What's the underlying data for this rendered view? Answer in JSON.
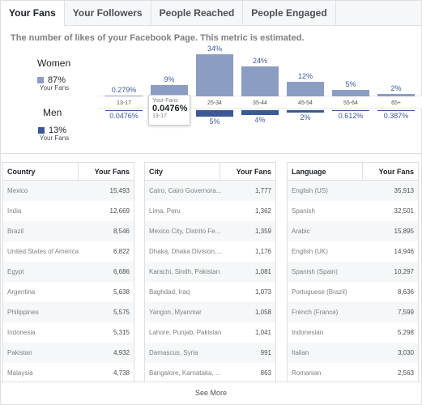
{
  "tabs": [
    {
      "label": "Your Fans",
      "active": true
    },
    {
      "label": "Your Followers",
      "active": false
    },
    {
      "label": "People Reached",
      "active": false
    },
    {
      "label": "People Engaged",
      "active": false
    }
  ],
  "description": "The number of likes of your Facebook Page. This metric is estimated.",
  "gender": {
    "women": {
      "label": "Women",
      "pct": "87%",
      "sub": "Your Fans",
      "color": "#8b9dc3"
    },
    "men": {
      "label": "Men",
      "pct": "13%",
      "sub": "Your Fans",
      "color": "#3b5998"
    }
  },
  "chart_data": {
    "type": "bar",
    "categories": [
      "13-17",
      "18-24",
      "25-34",
      "35-44",
      "45-54",
      "55-64",
      "65+"
    ],
    "series": [
      {
        "name": "Women",
        "values": [
          0.279,
          9,
          34,
          24,
          12,
          5,
          2
        ],
        "labels": [
          "0.279%",
          "9%",
          "34%",
          "24%",
          "12%",
          "5%",
          "2%"
        ],
        "color": "#8b9dc3"
      },
      {
        "name": "Men",
        "values": [
          0.0476,
          0.3,
          5,
          4,
          2,
          0.612,
          0.387
        ],
        "labels": [
          "0.0476%",
          "",
          "5%",
          "4%",
          "2%",
          "0.612%",
          "0.387%"
        ],
        "color": "#3b5998"
      }
    ]
  },
  "tooltip": {
    "title": "Your Fans",
    "value": "0.0476%",
    "sub": "13-17"
  },
  "tables": [
    {
      "col1": "Country",
      "col2": "Your Fans",
      "rows": [
        [
          "Mexico",
          "15,493"
        ],
        [
          "India",
          "12,669"
        ],
        [
          "Brazil",
          "8,546"
        ],
        [
          "United States of America",
          "6,822"
        ],
        [
          "Egypt",
          "6,686"
        ],
        [
          "Argentina",
          "5,638"
        ],
        [
          "Philippines",
          "5,575"
        ],
        [
          "Indonesia",
          "5,315"
        ],
        [
          "Pakistan",
          "4,932"
        ],
        [
          "Malaysia",
          "4,738"
        ]
      ]
    },
    {
      "col1": "City",
      "col2": "Your Fans",
      "rows": [
        [
          "Cairo, Cairo Governora...",
          "1,777"
        ],
        [
          "Lima, Peru",
          "1,362"
        ],
        [
          "Mexico City, Distrito Fe...",
          "1,359"
        ],
        [
          "Dhaka, Dhaka Division,...",
          "1,176"
        ],
        [
          "Karachi, Sindh, Pakistan",
          "1,081"
        ],
        [
          "Baghdad, Iraq",
          "1,073"
        ],
        [
          "Yangon, Myanmar",
          "1,058"
        ],
        [
          "Lahore, Punjab, Pakistan",
          "1,041"
        ],
        [
          "Damascus, Syria",
          "991"
        ],
        [
          "Bangalore, Karnataka, ...",
          "863"
        ]
      ]
    },
    {
      "col1": "Language",
      "col2": "Your Fans",
      "rows": [
        [
          "English (US)",
          "35,913"
        ],
        [
          "Spanish",
          "32,501"
        ],
        [
          "Arabic",
          "15,895"
        ],
        [
          "English (UK)",
          "14,946"
        ],
        [
          "Spanish (Spain)",
          "10,297"
        ],
        [
          "Portuguese (Brazil)",
          "8,636"
        ],
        [
          "French (France)",
          "7,599"
        ],
        [
          "Indonesian",
          "5,298"
        ],
        [
          "Italian",
          "3,030"
        ],
        [
          "Romanian",
          "2,563"
        ]
      ]
    }
  ],
  "see_more": "See More"
}
